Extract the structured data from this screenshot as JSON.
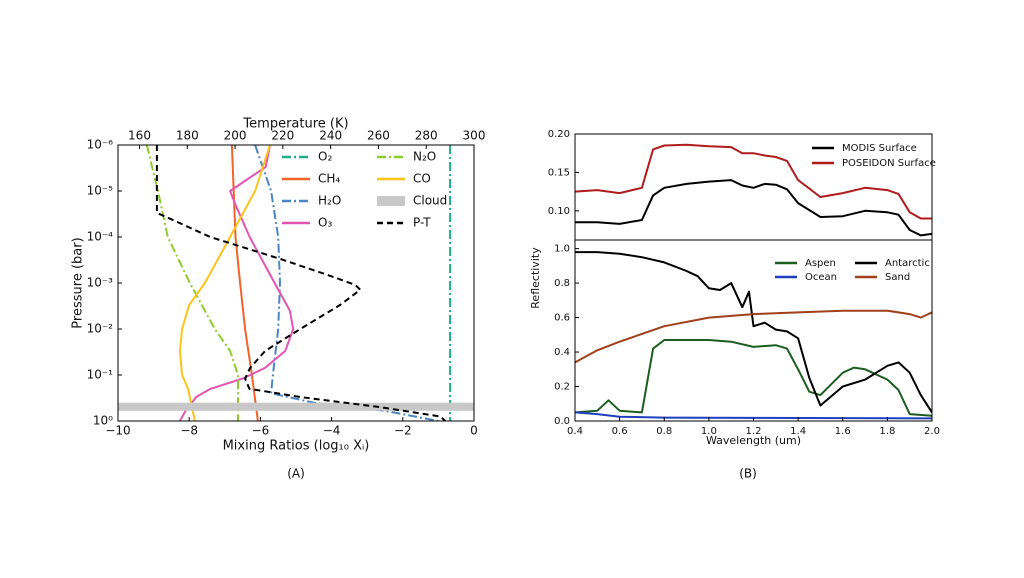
{
  "chart_data": [
    {
      "type": "line",
      "caption": "(A)",
      "xlabel": "Mixing Ratios (log₁₀ Xᵢ)",
      "x2label": "Temperature (K)",
      "ylabel": "Pressure (bar)",
      "xlim": [
        -10,
        0
      ],
      "xticks": [
        {
          "value": -10,
          "label": "−10"
        },
        {
          "value": -8,
          "label": "−8"
        },
        {
          "value": -6,
          "label": "−6"
        },
        {
          "value": -4,
          "label": "−4"
        },
        {
          "value": -2,
          "label": "−2"
        },
        0
      ],
      "x2lim": [
        151,
        300
      ],
      "x2ticks": [
        160,
        180,
        200,
        220,
        240,
        260,
        280,
        300
      ],
      "ylim": [
        1e-06,
        1
      ],
      "y_log": true,
      "y_inverted": true,
      "yticks": [
        {
          "value": 1e-06,
          "label": "10⁻⁶"
        },
        {
          "value": 1e-05,
          "label": "10⁻⁵"
        },
        {
          "value": 0.0001,
          "label": "10⁻⁴"
        },
        {
          "value": 0.001,
          "label": "10⁻³"
        },
        {
          "value": 0.01,
          "label": "10⁻²"
        },
        {
          "value": 0.1,
          "label": "10⁻¹"
        },
        {
          "value": 1,
          "label": "10⁰"
        }
      ],
      "legend": "upper right",
      "legend_columns": 2,
      "series": [
        {
          "name": "O₂",
          "color": "#1fae8c",
          "style": "dashdot",
          "values": [
            -0.67,
            -0.67,
            -0.67,
            -0.67
          ],
          "pressure": [
            1e-06,
            0.0001,
            0.01,
            1
          ]
        },
        {
          "name": "CH₄",
          "color": "#f0642a",
          "style": "solid",
          "values": [
            -6.8,
            -6.7,
            -6.57,
            -6.43,
            -6.24,
            -6.07
          ],
          "pressure": [
            1e-06,
            0.0001,
            0.001,
            0.01,
            0.1,
            1
          ]
        },
        {
          "name": "H₂O",
          "color": "#4b86c4",
          "style": "dashdot",
          "values": [
            -6.15,
            -5.7,
            -5.5,
            -5.45,
            -5.5,
            -5.65,
            -5.7,
            -4.5,
            -2.5,
            -1
          ],
          "pressure": [
            1e-06,
            1e-05,
            0.0001,
            0.001,
            0.01,
            0.1,
            0.25,
            0.4,
            0.6,
            1
          ]
        },
        {
          "name": "O₃",
          "color": "#e455b0",
          "style": "solid",
          "values": [
            -5.73,
            -5.85,
            -6.85,
            -6.7,
            -6.3,
            -5.6,
            -5.17,
            -5.08,
            -5.3,
            -5.87,
            -6.5,
            -7.4,
            -7.8,
            -8.1,
            -8.26
          ],
          "pressure": [
            1e-06,
            3e-06,
            1e-05,
            2e-05,
            0.0001,
            0.001,
            0.004,
            0.01,
            0.03,
            0.07,
            0.12,
            0.2,
            0.3,
            0.6,
            1
          ]
        },
        {
          "name": "N₂O",
          "color": "#8ccd2c",
          "style": "dashdot",
          "values": [
            -9.19,
            -8.88,
            -8.6,
            -7.98,
            -7.28,
            -6.85,
            -6.63,
            -6.63
          ],
          "pressure": [
            1e-06,
            1e-05,
            0.0001,
            0.001,
            0.01,
            0.03,
            0.1,
            1
          ]
        },
        {
          "name": "CO",
          "color": "#fcc419",
          "style": "solid",
          "values": [
            -5.73,
            -6.15,
            -6.85,
            -7.56,
            -8,
            -8.2,
            -8.26,
            -8.2,
            -8.03,
            -7.84
          ],
          "pressure": [
            1e-06,
            1e-05,
            0.0001,
            0.001,
            0.003,
            0.01,
            0.03,
            0.1,
            0.2,
            1
          ]
        },
        {
          "name": "Cloud",
          "color": "#c8c8c8",
          "kind": "band",
          "pressure": [
            0.4,
            0.6
          ]
        },
        {
          "name": "P-T",
          "color": "#000000",
          "style": "dashed",
          "axis": "x2",
          "values": [
            167.3,
            167.3,
            172.8,
            189.6,
            218.9,
            239.9,
            250.3,
            252.4,
            244,
            227.3,
            212.6,
            206.3,
            204.2,
            206,
            227,
            260.8,
            285.9,
            288
          ],
          "pressure": [
            1e-06,
            3e-05,
            4e-05,
            0.0001,
            0.0003,
            0.0007,
            0.0011,
            0.0014,
            0.003,
            0.01,
            0.03,
            0.07,
            0.12,
            0.2,
            0.3,
            0.5,
            0.8,
            1
          ]
        }
      ]
    },
    {
      "type": "line",
      "xlim": [
        0.4,
        2.0
      ],
      "ylim": [
        0.062,
        0.2
      ],
      "yticks": [
        {
          "value": 0.1,
          "label": "0.10"
        },
        0.15,
        {
          "value": 0.2,
          "label": "0.20"
        }
      ],
      "legend": "upper right",
      "legend_columns": 1,
      "x": [
        0.4,
        0.5,
        0.6,
        0.7,
        0.75,
        0.8,
        0.9,
        1.0,
        1.1,
        1.15,
        1.2,
        1.25,
        1.3,
        1.35,
        1.4,
        1.5,
        1.6,
        1.7,
        1.8,
        1.85,
        1.9,
        1.95,
        2.0
      ],
      "series": [
        {
          "name": "MODIS Surface",
          "color": "#000000",
          "values": [
            0.085,
            0.085,
            0.083,
            0.088,
            0.12,
            0.13,
            0.135,
            0.138,
            0.14,
            0.133,
            0.13,
            0.135,
            0.134,
            0.128,
            0.11,
            0.092,
            0.093,
            0.1,
            0.098,
            0.095,
            0.075,
            0.068,
            0.07
          ]
        },
        {
          "name": "POSEIDON Surface",
          "color": "#b01c1c",
          "values": [
            0.125,
            0.127,
            0.123,
            0.13,
            0.18,
            0.185,
            0.186,
            0.184,
            0.183,
            0.175,
            0.175,
            0.172,
            0.17,
            0.165,
            0.14,
            0.118,
            0.123,
            0.13,
            0.127,
            0.122,
            0.098,
            0.09,
            0.09
          ]
        }
      ]
    },
    {
      "type": "line",
      "caption": "(B)",
      "xlabel": "Wavelength (um)",
      "ylabel": "Reflectivity",
      "xlim": [
        0.4,
        2.0
      ],
      "xticks": [
        0.4,
        0.6,
        0.8,
        {
          "value": 1,
          "label": "1.0"
        },
        1.2,
        1.4,
        1.6,
        1.8,
        {
          "value": 2,
          "label": "2.0"
        }
      ],
      "ylim": [
        0,
        1.05
      ],
      "yticks": [
        {
          "value": 0,
          "label": "0.0"
        },
        0.2,
        0.4,
        0.6,
        0.8,
        {
          "value": 1,
          "label": "1.0"
        }
      ],
      "legend": "upper right",
      "legend_columns": 2,
      "series": [
        {
          "name": "Aspen",
          "color": "#1b5e20",
          "x": [
            0.4,
            0.5,
            0.55,
            0.6,
            0.7,
            0.75,
            0.8,
            1.0,
            1.1,
            1.2,
            1.3,
            1.35,
            1.4,
            1.45,
            1.5,
            1.6,
            1.65,
            1.7,
            1.8,
            1.85,
            1.9,
            2.0
          ],
          "values": [
            0.05,
            0.06,
            0.12,
            0.06,
            0.05,
            0.42,
            0.47,
            0.47,
            0.46,
            0.43,
            0.44,
            0.42,
            0.3,
            0.17,
            0.15,
            0.28,
            0.31,
            0.3,
            0.24,
            0.18,
            0.04,
            0.03
          ]
        },
        {
          "name": "Ocean",
          "color": "#1f3fbf",
          "x": [
            0.4,
            0.5,
            0.6,
            0.8,
            1.2,
            2.0
          ],
          "values": [
            0.05,
            0.04,
            0.025,
            0.02,
            0.018,
            0.015
          ]
        },
        {
          "name": "Antarctic",
          "color": "#000000",
          "x": [
            0.4,
            0.5,
            0.6,
            0.7,
            0.8,
            0.9,
            0.95,
            1.0,
            1.05,
            1.1,
            1.15,
            1.18,
            1.2,
            1.25,
            1.3,
            1.35,
            1.4,
            1.45,
            1.5,
            1.6,
            1.7,
            1.8,
            1.85,
            1.9,
            1.95,
            2.0
          ],
          "values": [
            0.98,
            0.98,
            0.97,
            0.95,
            0.92,
            0.87,
            0.84,
            0.77,
            0.76,
            0.8,
            0.66,
            0.75,
            0.55,
            0.57,
            0.53,
            0.52,
            0.48,
            0.25,
            0.09,
            0.2,
            0.24,
            0.32,
            0.34,
            0.28,
            0.15,
            0.05
          ]
        },
        {
          "name": "Sand",
          "color": "#a0401a",
          "x": [
            0.4,
            0.5,
            0.6,
            0.8,
            1.0,
            1.2,
            1.4,
            1.6,
            1.8,
            1.9,
            1.95,
            2.0
          ],
          "values": [
            0.34,
            0.41,
            0.46,
            0.55,
            0.6,
            0.62,
            0.63,
            0.64,
            0.64,
            0.62,
            0.6,
            0.63
          ]
        }
      ]
    }
  ]
}
